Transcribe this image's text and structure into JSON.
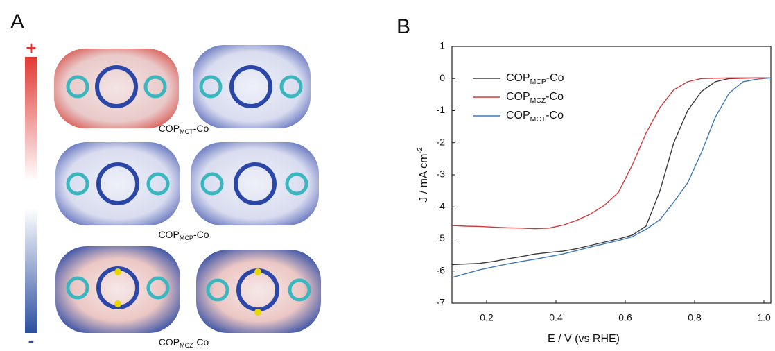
{
  "panel_a": {
    "label": "A",
    "scale_max": "+",
    "scale_min": "-",
    "structures": [
      "COPMCT-Co",
      "COPMCP-Co",
      "COPMCZ-Co"
    ]
  },
  "chart_data": {
    "type": "line",
    "panel_label": "B",
    "x_label": "E / V (vs RHE)",
    "y_label": "J / mA cm-2",
    "x": [
      0.1,
      0.14,
      0.18,
      0.22,
      0.26,
      0.3,
      0.34,
      0.38,
      0.42,
      0.46,
      0.5,
      0.54,
      0.58,
      0.62,
      0.66,
      0.7,
      0.74,
      0.78,
      0.82,
      0.86,
      0.9,
      0.94,
      0.98,
      1.02
    ],
    "series": [
      {
        "name": "COPMCP-Co",
        "color": "#3a3a3a",
        "values": [
          -5.8,
          -5.78,
          -5.76,
          -5.7,
          -5.62,
          -5.55,
          -5.47,
          -5.42,
          -5.38,
          -5.3,
          -5.2,
          -5.1,
          -5.0,
          -4.88,
          -4.6,
          -3.5,
          -2.0,
          -1.0,
          -0.4,
          -0.1,
          0,
          0.01,
          0.02,
          0.02
        ]
      },
      {
        "name": "COPMCZ-Co",
        "color": "#d2383a",
        "values": [
          -4.58,
          -4.6,
          -4.61,
          -4.63,
          -4.65,
          -4.66,
          -4.68,
          -4.66,
          -4.57,
          -4.42,
          -4.22,
          -3.95,
          -3.55,
          -2.7,
          -1.7,
          -0.9,
          -0.35,
          -0.1,
          0,
          0.01,
          0.02,
          0.02,
          0.02,
          0.02
        ]
      },
      {
        "name": "COPMCT-Co",
        "color": "#3d78b8",
        "values": [
          -6.2,
          -6.08,
          -5.96,
          -5.87,
          -5.78,
          -5.7,
          -5.63,
          -5.55,
          -5.47,
          -5.36,
          -5.25,
          -5.15,
          -5.05,
          -4.93,
          -4.7,
          -4.4,
          -3.85,
          -3.25,
          -2.3,
          -1.2,
          -0.45,
          -0.1,
          -0.02,
          0.02
        ]
      }
    ],
    "xlim": [
      0.1,
      1.02
    ],
    "xticks": [
      0.2,
      0.4,
      0.6,
      0.8,
      {
        "value": 1,
        "label": "1.0"
      }
    ],
    "ylim": [
      -7,
      1
    ],
    "yticks": [
      -7,
      -6,
      -5,
      -4,
      -3,
      -2,
      -1,
      0,
      1
    ],
    "legend": "upper left"
  }
}
